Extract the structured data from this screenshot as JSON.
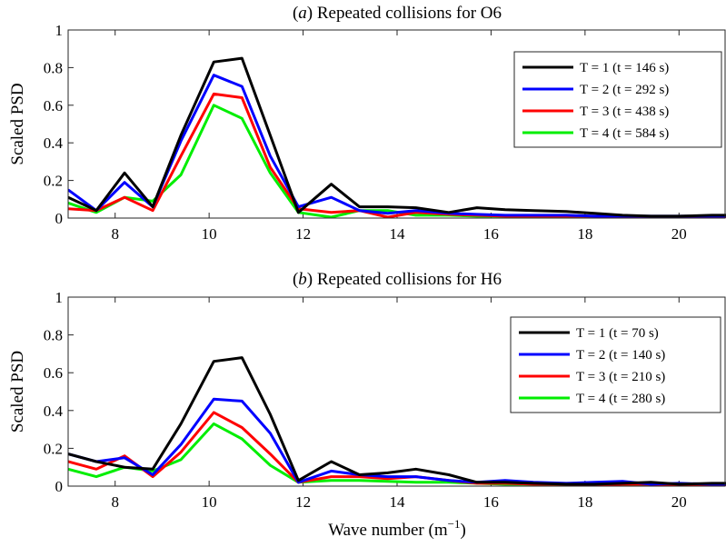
{
  "chart_data": [
    {
      "type": "line",
      "title": "(a) Repeated collisions for O6",
      "title_italic_prefix": "a",
      "xlabel": "",
      "ylabel": "Scaled PSD",
      "xlim": [
        7,
        21
      ],
      "ylim": [
        0,
        1
      ],
      "xticks": [
        8,
        10,
        12,
        14,
        16,
        18,
        20
      ],
      "yticks": [
        0,
        0.2,
        0.4,
        0.6,
        0.8,
        1
      ],
      "ytick_labels": [
        "0",
        "0.2",
        "0.4",
        "0.6",
        "0.8",
        "1"
      ],
      "legend_position": "top-right",
      "x": [
        7.0,
        7.6,
        8.2,
        8.8,
        9.4,
        10.1,
        10.7,
        11.3,
        11.9,
        12.6,
        13.2,
        13.8,
        14.4,
        15.1,
        15.7,
        16.3,
        16.9,
        17.6,
        18.2,
        18.8,
        19.4,
        20.0,
        20.7,
        21.0
      ],
      "series": [
        {
          "name": "T = 1 (t = 146 s)",
          "color": "#000000",
          "values": [
            0.11,
            0.04,
            0.24,
            0.06,
            0.44,
            0.83,
            0.85,
            0.44,
            0.03,
            0.18,
            0.06,
            0.06,
            0.055,
            0.03,
            0.055,
            0.045,
            0.04,
            0.035,
            0.025,
            0.015,
            0.01,
            0.01,
            0.015,
            0.015
          ]
        },
        {
          "name": "T = 2 (t = 292 s)",
          "color": "#0000ff",
          "values": [
            0.15,
            0.04,
            0.19,
            0.06,
            0.41,
            0.76,
            0.7,
            0.33,
            0.06,
            0.11,
            0.04,
            0.025,
            0.04,
            0.025,
            0.02,
            0.015,
            0.015,
            0.015,
            0.01,
            0.01,
            0.01,
            0.01,
            0.01,
            0.01
          ]
        },
        {
          "name": "T = 3 (t = 438 s)",
          "color": "#ff0000",
          "values": [
            0.05,
            0.04,
            0.11,
            0.04,
            0.33,
            0.66,
            0.64,
            0.27,
            0.05,
            0.03,
            0.04,
            0.005,
            0.03,
            0.02,
            0.015,
            0.01,
            0.01,
            0.01,
            0.01,
            0.005,
            0.005,
            0.005,
            0.005,
            0.005
          ]
        },
        {
          "name": "T = 4 (t = 584 s)",
          "color": "#00ee00",
          "values": [
            0.08,
            0.03,
            0.11,
            0.09,
            0.23,
            0.6,
            0.53,
            0.24,
            0.03,
            0.005,
            0.04,
            0.04,
            0.015,
            0.015,
            0.01,
            0.01,
            0.01,
            0.01,
            0.01,
            0.005,
            0.005,
            0.005,
            0.005,
            0.005
          ]
        }
      ]
    },
    {
      "type": "line",
      "title": "(b) Repeated collisions for H6",
      "title_italic_prefix": "b",
      "xlabel": "Wave number (m",
      "xlabel_superscript": "−1",
      "xlabel_suffix": ")",
      "ylabel": "Scaled PSD",
      "xlim": [
        7,
        21
      ],
      "ylim": [
        0,
        1
      ],
      "xticks": [
        8,
        10,
        12,
        14,
        16,
        18,
        20
      ],
      "yticks": [
        0,
        0.2,
        0.4,
        0.6,
        0.8,
        1
      ],
      "ytick_labels": [
        "0",
        "0.2",
        "0.4",
        "0.6",
        "0.8",
        "1"
      ],
      "legend_position": "top-right",
      "x": [
        7.0,
        7.6,
        8.2,
        8.8,
        9.4,
        10.1,
        10.7,
        11.3,
        11.9,
        12.6,
        13.2,
        13.8,
        14.4,
        15.1,
        15.7,
        16.3,
        16.9,
        17.6,
        18.2,
        18.8,
        19.4,
        20.0,
        20.7,
        21.0
      ],
      "series": [
        {
          "name": "T = 1 (t = 70 s)",
          "color": "#000000",
          "values": [
            0.17,
            0.13,
            0.1,
            0.09,
            0.33,
            0.66,
            0.68,
            0.38,
            0.03,
            0.13,
            0.06,
            0.07,
            0.09,
            0.06,
            0.02,
            0.02,
            0.015,
            0.01,
            0.01,
            0.015,
            0.02,
            0.01,
            0.015,
            0.015
          ]
        },
        {
          "name": "T = 2 (t = 140 s)",
          "color": "#0000ff",
          "values": [
            0.17,
            0.13,
            0.15,
            0.06,
            0.22,
            0.46,
            0.45,
            0.28,
            0.02,
            0.08,
            0.06,
            0.05,
            0.05,
            0.03,
            0.02,
            0.03,
            0.02,
            0.015,
            0.02,
            0.025,
            0.01,
            0.015,
            0.01,
            0.01
          ]
        },
        {
          "name": "T = 3 (t = 210 s)",
          "color": "#ff0000",
          "values": [
            0.13,
            0.09,
            0.16,
            0.05,
            0.18,
            0.39,
            0.31,
            0.17,
            0.02,
            0.05,
            0.05,
            0.04,
            0.05,
            0.03,
            0.015,
            0.015,
            0.01,
            0.01,
            0.005,
            0.01,
            0.01,
            0.005,
            0.005,
            0.005
          ]
        },
        {
          "name": "T = 4 (t = 280 s)",
          "color": "#00ee00",
          "values": [
            0.09,
            0.05,
            0.1,
            0.08,
            0.14,
            0.33,
            0.25,
            0.11,
            0.02,
            0.03,
            0.03,
            0.025,
            0.02,
            0.02,
            0.015,
            0.01,
            0.01,
            0.01,
            0.015,
            0.01,
            0.01,
            0.01,
            0.01,
            0.01
          ]
        }
      ]
    }
  ]
}
